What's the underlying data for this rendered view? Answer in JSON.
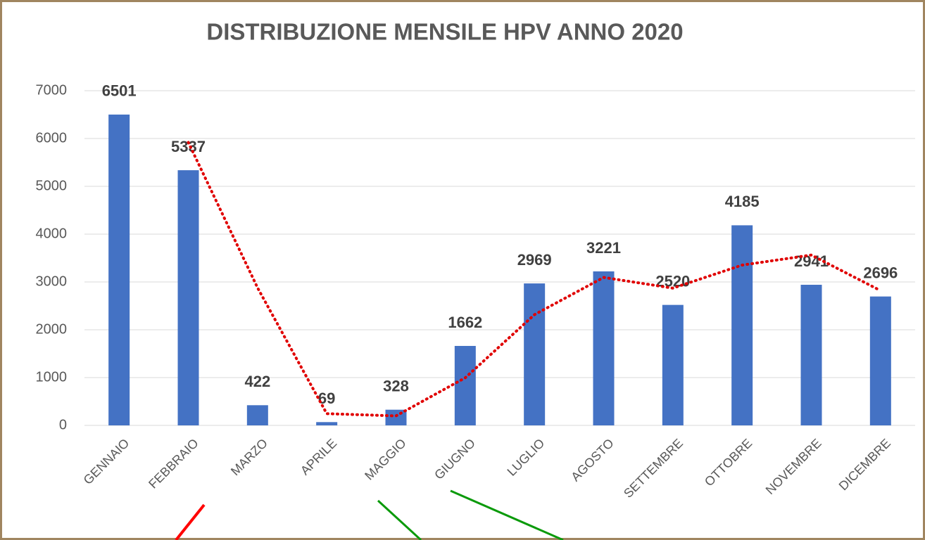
{
  "chart_data": {
    "type": "bar",
    "title": "DISTRIBUZIONE MENSILE HPV ANNO 2020",
    "categories": [
      "GENNAIO",
      "FEBBRAIO",
      "MARZO",
      "APRILE",
      "MAGGIO",
      "GIUGNO",
      "LUGLIO",
      "AGOSTO",
      "SETTEMBRE",
      "OTTOBRE",
      "NOVEMBRE",
      "DICEMBRE"
    ],
    "values": [
      6501,
      5337,
      422,
      69,
      328,
      1662,
      2969,
      3221,
      2520,
      4185,
      2941,
      2696
    ],
    "color": "#4472c4",
    "trendline": {
      "color": "#e00000",
      "values": [
        null,
        5919,
        2879.5,
        245.5,
        198.5,
        995,
        2315.5,
        3095,
        2870.5,
        3352.5,
        3563,
        2818.5
      ]
    },
    "ylim": [
      0,
      7000
    ],
    "yticks": [
      0,
      1000,
      2000,
      3000,
      4000,
      5000,
      6000,
      7000
    ],
    "grid": true
  }
}
